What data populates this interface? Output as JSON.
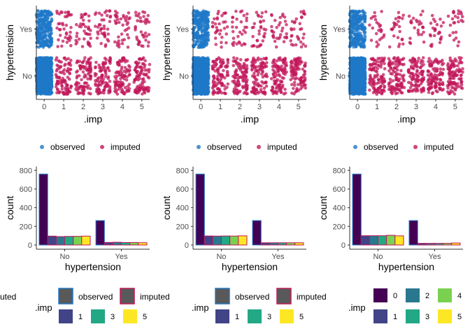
{
  "colors": {
    "observed": "#1f78c8",
    "imputed": "#c2185b",
    "imp": [
      "#440154",
      "#414487",
      "#2a788e",
      "#22a884",
      "#7ad151",
      "#fde725"
    ],
    "axis": "#333333",
    "tick_label": "#4d4d4d"
  },
  "chart_data": [
    {
      "type": "scatter",
      "panel": 1,
      "title": "",
      "xlabel": ".imp",
      "ylabel": "hypertension",
      "x_ticks": [
        "0",
        "1",
        "2",
        "3",
        "4",
        "5"
      ],
      "y_categories": [
        "No",
        "Yes"
      ],
      "xlim": [
        -0.4,
        5.4
      ],
      "jitter": true,
      "series": [
        {
          "name": "observed",
          "imp": [
            0
          ],
          "counts": {
            "No": 760,
            "Yes": 262
          }
        },
        {
          "name": "imputed",
          "imp": [
            1,
            2,
            3,
            4,
            5
          ],
          "counts_per_imp": {
            "No": 95,
            "Yes": 40
          }
        }
      ],
      "legend": {
        "position": "bottom",
        "entries": [
          "observed",
          "imputed"
        ]
      }
    },
    {
      "type": "scatter",
      "panel": 2,
      "title": "",
      "xlabel": ".imp",
      "ylabel": "hypertension",
      "x_ticks": [
        "0",
        "1",
        "2",
        "3",
        "4",
        "5"
      ],
      "y_categories": [
        "No",
        "Yes"
      ],
      "xlim": [
        -0.4,
        5.4
      ],
      "jitter": true,
      "series": [
        {
          "name": "observed",
          "imp": [
            0
          ],
          "counts": {
            "No": 760,
            "Yes": 262
          }
        },
        {
          "name": "imputed",
          "imp": [
            1,
            2,
            3,
            4,
            5
          ],
          "counts_per_imp": {
            "No": 100,
            "Yes": 32
          }
        }
      ],
      "legend": {
        "position": "bottom",
        "entries": [
          "observed",
          "imputed"
        ]
      }
    },
    {
      "type": "scatter",
      "panel": 3,
      "title": "",
      "xlabel": ".imp",
      "ylabel": "hypertension",
      "x_ticks": [
        "0",
        "1",
        "2",
        "3",
        "4",
        "5"
      ],
      "y_categories": [
        "No",
        "Yes"
      ],
      "xlim": [
        -0.4,
        5.4
      ],
      "jitter": true,
      "series": [
        {
          "name": "observed",
          "imp": [
            0
          ],
          "counts": {
            "No": 760,
            "Yes": 262
          }
        },
        {
          "name": "imputed",
          "imp": [
            1,
            2,
            3,
            4,
            5
          ],
          "counts_per_imp": {
            "No": 105,
            "Yes": 25
          }
        }
      ],
      "legend": {
        "position": "bottom",
        "entries": [
          "observed",
          "imputed"
        ]
      }
    },
    {
      "type": "bar",
      "panel": 4,
      "title": "",
      "xlabel": "hypertension",
      "ylabel": "count",
      "categories": [
        "No",
        "Yes"
      ],
      "y_ticks": [
        0,
        200,
        400,
        600,
        800
      ],
      "ylim": [
        0,
        840
      ],
      "series": [
        {
          "name": "0",
          "values": [
            760,
            262
          ]
        },
        {
          "name": "1",
          "values": [
            95,
            28
          ]
        },
        {
          "name": "2",
          "values": [
            90,
            30
          ]
        },
        {
          "name": "3",
          "values": [
            92,
            26
          ]
        },
        {
          "name": "4",
          "values": [
            93,
            27
          ]
        },
        {
          "name": "5",
          "values": [
            95,
            25
          ]
        }
      ],
      "legend": {
        "position": "bottom",
        "title": ".imp",
        "observed_label": "observed",
        "imputed_label": "imputed",
        "fill_entries": [
          "1",
          "3",
          "5"
        ],
        "left_partial": "uted"
      }
    },
    {
      "type": "bar",
      "panel": 5,
      "title": "",
      "xlabel": "hypertension",
      "ylabel": "count",
      "categories": [
        "No",
        "Yes"
      ],
      "y_ticks": [
        0,
        200,
        400,
        600,
        800
      ],
      "ylim": [
        0,
        840
      ],
      "series": [
        {
          "name": "0",
          "values": [
            760,
            262
          ]
        },
        {
          "name": "1",
          "values": [
            97,
            24
          ]
        },
        {
          "name": "2",
          "values": [
            95,
            24
          ]
        },
        {
          "name": "3",
          "values": [
            97,
            24
          ]
        },
        {
          "name": "4",
          "values": [
            96,
            24
          ]
        },
        {
          "name": "5",
          "values": [
            98,
            24
          ]
        }
      ],
      "legend": {
        "position": "bottom",
        "title": ".imp",
        "observed_label": "observed",
        "imputed_label": "imputed",
        "fill_entries": [
          "1",
          "3",
          "5"
        ]
      }
    },
    {
      "type": "bar",
      "panel": 6,
      "title": "",
      "xlabel": "hypertension",
      "ylabel": "count",
      "categories": [
        "No",
        "Yes"
      ],
      "y_ticks": [
        0,
        200,
        400,
        600,
        800
      ],
      "ylim": [
        0,
        840
      ],
      "series": [
        {
          "name": "0",
          "values": [
            760,
            262
          ]
        },
        {
          "name": "1",
          "values": [
            100,
            18
          ]
        },
        {
          "name": "2",
          "values": [
            100,
            18
          ]
        },
        {
          "name": "3",
          "values": [
            100,
            18
          ]
        },
        {
          "name": "4",
          "values": [
            104,
            18
          ]
        },
        {
          "name": "5",
          "values": [
            98,
            22
          ]
        }
      ],
      "legend": {
        "position": "bottom",
        "title": ".imp",
        "entries": [
          "0",
          "1",
          "2",
          "3",
          "4",
          "5"
        ]
      }
    }
  ]
}
